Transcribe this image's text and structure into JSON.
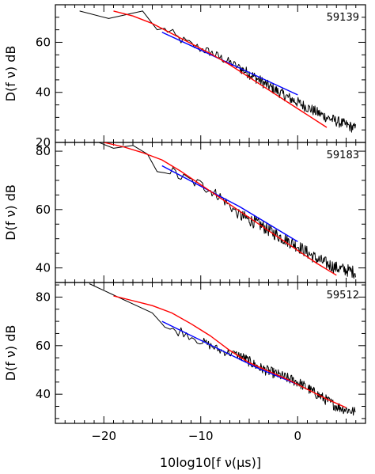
{
  "chart_data": {
    "type": "line",
    "xlabel": "10log10[f ν(μs)]",
    "xlim": [
      -25,
      7
    ],
    "xticks": [
      -20,
      -10,
      0
    ],
    "panels": [
      {
        "label": "59139",
        "ylabel": "D(f ν) dB",
        "ylim": [
          20,
          75
        ],
        "yticks": [
          20,
          40,
          60
        ],
        "series": [
          {
            "color": "#000000",
            "style": "noisy",
            "x": [
              -22.5,
              -19.5,
              -16.0,
              -14.5,
              -13.5,
              -12.5,
              -11.0,
              -9.0,
              -7.0,
              -5.0,
              -3.0,
              -1.0,
              1.0,
              3.0,
              5.0,
              6.0
            ],
            "y": [
              72.5,
              69.5,
              72.5,
              65.0,
              65.0,
              62.0,
              59.0,
              56.0,
              52.0,
              47.5,
              42.5,
              38.0,
              34.0,
              30.0,
              27.0,
              25.5
            ]
          },
          {
            "color": "#0000ff",
            "style": "smooth",
            "x": [
              -14.0,
              0.0
            ],
            "y": [
              64.0,
              39.0
            ]
          },
          {
            "color": "#ff0000",
            "style": "smooth",
            "x": [
              -19.0,
              -17.0,
              -15.0,
              -13.0,
              -11.0,
              -9.0,
              -7.0,
              -5.0,
              -3.0,
              -1.0,
              1.0,
              3.0
            ],
            "y": [
              72.5,
              70.5,
              67.5,
              63.5,
              59.5,
              55.5,
              51.0,
              46.0,
              41.0,
              36.0,
              31.0,
              26.0
            ]
          }
        ]
      },
      {
        "label": "59183",
        "ylabel": "D(f ν) dB",
        "ylim": [
          35,
          83
        ],
        "yticks": [
          40,
          60,
          80
        ],
        "series": [
          {
            "color": "#000000",
            "style": "noisy",
            "x": [
              -20.5,
              -19.0,
              -17.0,
              -15.5,
              -14.5,
              -13.5,
              -12.0,
              -10.0,
              -8.0,
              -6.0,
              -4.0,
              -2.0,
              0.0,
              2.0,
              4.0,
              6.0
            ],
            "y": [
              83.0,
              81.0,
              82.0,
              79.0,
              73.0,
              74.0,
              71.0,
              68.5,
              64.5,
              58.0,
              55.0,
              51.0,
              47.5,
              43.0,
              40.0,
              38.5
            ]
          },
          {
            "color": "#0000ff",
            "style": "smooth",
            "x": [
              -14.0,
              -6.0,
              0.0
            ],
            "y": [
              75.0,
              61.0,
              49.0
            ]
          },
          {
            "color": "#ff0000",
            "style": "smooth",
            "x": [
              -20.0,
              -18.0,
              -16.0,
              -14.0,
              -12.0,
              -10.0,
              -8.0,
              -6.0,
              -4.0,
              -2.0,
              0.0,
              2.0,
              4.0
            ],
            "y": [
              83.0,
              81.5,
              79.5,
              77.0,
              73.0,
              68.5,
              64.0,
              59.5,
              55.0,
              50.5,
              46.0,
              41.5,
              37.5
            ]
          }
        ]
      },
      {
        "label": "59512",
        "ylabel": "D(f ν) dB",
        "ylim": [
          28,
          86
        ],
        "yticks": [
          40,
          60,
          80
        ],
        "series": [
          {
            "color": "#000000",
            "style": "noisy",
            "x": [
              -21.5,
              -18.0,
              -15.0,
              -14.0,
              -13.0,
              -12.0,
              -10.0,
              -8.0,
              -6.0,
              -4.0,
              -2.0,
              0.0,
              2.0,
              4.0,
              6.0
            ],
            "y": [
              85.5,
              79.0,
              73.5,
              69.0,
              66.0,
              66.0,
              62.0,
              58.0,
              56.0,
              51.0,
              48.0,
              45.0,
              40.0,
              35.0,
              32.5
            ]
          },
          {
            "color": "#0000ff",
            "style": "smooth",
            "x": [
              -14.0,
              -4.0,
              0.0
            ],
            "y": [
              70.0,
              50.5,
              44.0
            ]
          },
          {
            "color": "#ff0000",
            "style": "smooth",
            "x": [
              -19.0,
              -17.0,
              -15.0,
              -13.0,
              -11.0,
              -9.0,
              -7.0,
              -5.0,
              -3.0,
              -1.0,
              1.0,
              3.0,
              5.0
            ],
            "y": [
              80.5,
              78.5,
              76.5,
              73.5,
              69.0,
              64.0,
              58.0,
              53.0,
              49.5,
              46.0,
              42.0,
              38.0,
              34.5
            ]
          }
        ]
      }
    ]
  }
}
